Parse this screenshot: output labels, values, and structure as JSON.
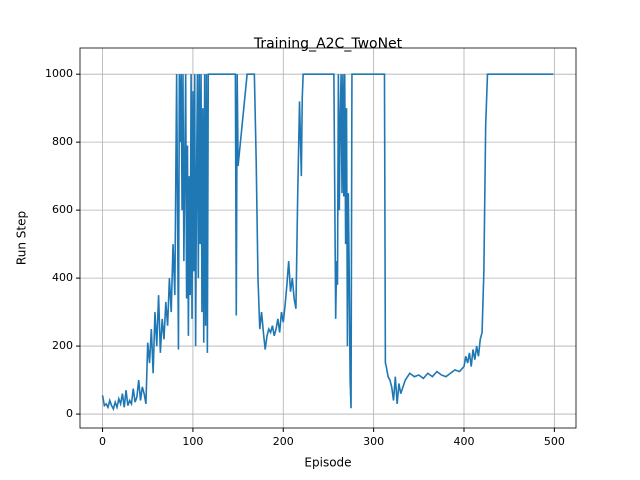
{
  "chart_data": {
    "type": "line",
    "title": "Training_A2C_TwoNet",
    "x_label": "Episode",
    "y_label": "Run Step",
    "x": [
      0,
      2,
      4,
      6,
      8,
      10,
      12,
      14,
      16,
      18,
      20,
      22,
      24,
      26,
      28,
      30,
      32,
      34,
      36,
      38,
      40,
      42,
      44,
      46,
      48,
      50,
      52,
      54,
      56,
      58,
      60,
      62,
      64,
      66,
      68,
      70,
      72,
      74,
      76,
      78,
      80,
      82,
      84,
      85,
      86,
      87,
      88,
      89,
      90,
      92,
      93,
      94,
      95,
      96,
      97,
      98,
      99,
      100,
      101,
      102,
      103,
      104,
      105,
      106,
      107,
      108,
      109,
      110,
      111,
      112,
      113,
      114,
      115,
      116,
      117,
      118,
      119,
      120,
      130,
      140,
      147,
      148,
      149,
      150,
      160,
      168,
      170,
      172,
      174,
      176,
      178,
      180,
      182,
      184,
      186,
      188,
      190,
      192,
      194,
      196,
      198,
      200,
      202,
      204,
      206,
      208,
      210,
      212,
      214,
      216,
      218,
      220,
      221,
      222,
      224,
      240,
      256,
      258,
      259,
      260,
      261,
      262,
      263,
      264,
      265,
      266,
      267,
      268,
      269,
      270,
      271,
      272,
      273,
      274,
      275,
      276,
      290,
      300,
      312,
      313,
      314,
      316,
      318,
      320,
      322,
      324,
      326,
      328,
      330,
      335,
      340,
      345,
      350,
      355,
      360,
      365,
      370,
      375,
      380,
      385,
      390,
      395,
      400,
      402,
      404,
      406,
      408,
      410,
      412,
      414,
      416,
      418,
      420,
      422,
      424,
      426,
      440,
      460,
      480,
      499
    ],
    "series": [
      {
        "name": "Run Step",
        "color": "#1f77b4",
        "values": [
          55,
          25,
          30,
          20,
          40,
          25,
          15,
          35,
          20,
          45,
          30,
          60,
          20,
          70,
          25,
          40,
          30,
          75,
          35,
          50,
          100,
          40,
          80,
          60,
          30,
          210,
          150,
          250,
          120,
          300,
          200,
          350,
          180,
          280,
          220,
          330,
          260,
          400,
          300,
          500,
          350,
          1000,
          190,
          1000,
          800,
          1000,
          600,
          1000,
          450,
          1000,
          340,
          790,
          230,
          700,
          350,
          1000,
          280,
          950,
          420,
          1000,
          200,
          680,
          1000,
          400,
          1000,
          500,
          1000,
          300,
          900,
          210,
          1000,
          260,
          1000,
          180,
          1000,
          1000,
          1000,
          1000,
          1000,
          1000,
          1000,
          290,
          1000,
          730,
          1000,
          1000,
          750,
          400,
          250,
          300,
          240,
          190,
          230,
          250,
          240,
          260,
          230,
          250,
          280,
          240,
          300,
          270,
          320,
          380,
          450,
          360,
          400,
          340,
          310,
          650,
          920,
          700,
          930,
          1000,
          1000,
          1000,
          1000,
          280,
          450,
          380,
          1000,
          600,
          870,
          1000,
          650,
          1000,
          640,
          1000,
          500,
          900,
          200,
          650,
          400,
          100,
          17,
          1000,
          1000,
          1000,
          1000,
          150,
          140,
          110,
          100,
          80,
          40,
          110,
          30,
          90,
          60,
          100,
          120,
          110,
          115,
          105,
          120,
          110,
          125,
          115,
          110,
          120,
          130,
          125,
          140,
          170,
          150,
          180,
          140,
          190,
          160,
          200,
          170,
          220,
          240,
          420,
          850,
          1000,
          1000,
          1000,
          1000,
          1000
        ]
      }
    ],
    "xlim": [
      -24.95,
      523.95
    ],
    "ylim": [
      -41,
      1077
    ],
    "xticks": [
      0,
      100,
      200,
      300,
      400,
      500
    ],
    "yticks": [
      0,
      200,
      400,
      600,
      800,
      1000
    ],
    "grid": true
  }
}
